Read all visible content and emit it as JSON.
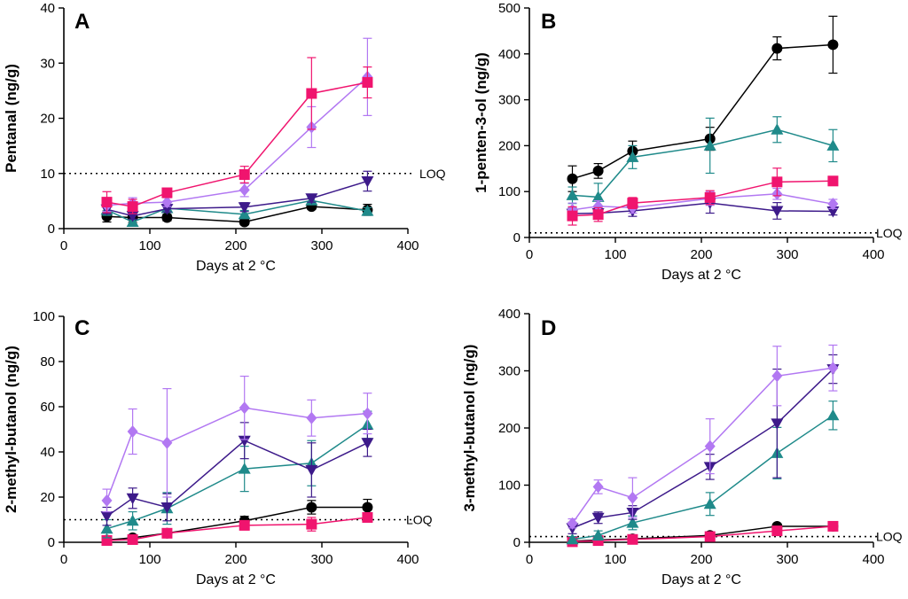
{
  "figure": {
    "colors": {
      "black": "#000000",
      "pink": "#f0146e",
      "violet": "#b278f2",
      "indigo": "#3d1a8a",
      "teal": "#1f8a8a"
    },
    "loq_text": "LOQ"
  },
  "chart_data": [
    {
      "id": "A",
      "letter": "A",
      "type": "line",
      "title": "",
      "xlabel": "Days at 2 °C",
      "ylabel": "Pentanal (ng/g)",
      "xlim": [
        0,
        400
      ],
      "ylim": [
        0,
        40
      ],
      "xticks": [
        0,
        100,
        200,
        300,
        400
      ],
      "yticks": [
        0,
        10,
        20,
        30,
        40
      ],
      "x_tick_labels": [
        "0",
        "100",
        "200",
        "300",
        "400"
      ],
      "y_tick_labels": [
        "0",
        "10",
        "20",
        "30",
        "40"
      ],
      "loq": 10,
      "x": [
        50,
        80,
        120,
        210,
        288,
        353
      ],
      "series": [
        {
          "name": "black-circle",
          "color": "#000000",
          "marker": "circle",
          "values": [
            2.2,
            2.0,
            2.0,
            1.2,
            4.0,
            3.4
          ],
          "errors": [
            1.0,
            0.9,
            0.6,
            0.5,
            0.5,
            1.0
          ]
        },
        {
          "name": "teal-triangle",
          "color": "#1f8a8a",
          "marker": "triangle-up",
          "values": [
            3.4,
            1.2,
            3.7,
            2.6,
            5.1,
            3.2
          ],
          "errors": [
            1.0,
            0.5,
            0.7,
            0.7,
            0.6,
            0.6
          ]
        },
        {
          "name": "indigo-triangle-down",
          "color": "#3d1a8a",
          "marker": "triangle-down",
          "values": [
            3.5,
            2.3,
            3.6,
            3.9,
            5.5,
            8.6
          ],
          "errors": [
            0.8,
            0.6,
            0.6,
            0.8,
            0.7,
            1.8
          ]
        },
        {
          "name": "violet-diamond",
          "color": "#b278f2",
          "marker": "diamond",
          "values": [
            4.2,
            4.6,
            4.8,
            7.0,
            18.4,
            27.5
          ],
          "errors": [
            1.1,
            1.0,
            0.8,
            1.2,
            3.7,
            7.0
          ]
        },
        {
          "name": "pink-square",
          "color": "#f0146e",
          "marker": "square",
          "values": [
            4.8,
            4.0,
            6.5,
            9.8,
            24.5,
            26.5
          ],
          "errors": [
            1.9,
            1.3,
            0.6,
            1.5,
            6.5,
            2.8
          ]
        }
      ]
    },
    {
      "id": "B",
      "letter": "B",
      "type": "line",
      "title": "",
      "xlabel": "Days at 2 °C",
      "ylabel": "1-penten-3-ol (ng/g)",
      "xlim": [
        0,
        400
      ],
      "ylim": [
        0,
        500
      ],
      "xticks": [
        0,
        100,
        200,
        300,
        400
      ],
      "yticks": [
        0,
        100,
        200,
        300,
        400,
        500
      ],
      "x_tick_labels": [
        "0",
        "100",
        "200",
        "300",
        "400"
      ],
      "y_tick_labels": [
        "0",
        "100",
        "200",
        "300",
        "400",
        "500"
      ],
      "loq": 10,
      "x": [
        50,
        80,
        120,
        210,
        288,
        353
      ],
      "series": [
        {
          "name": "black-circle",
          "color": "#000000",
          "marker": "circle",
          "values": [
            128,
            145,
            188,
            215,
            412,
            420
          ],
          "errors": [
            28,
            16,
            22,
            25,
            25,
            62
          ]
        },
        {
          "name": "teal-triangle",
          "color": "#1f8a8a",
          "marker": "triangle-up",
          "values": [
            92,
            88,
            175,
            200,
            235,
            200
          ],
          "errors": [
            18,
            30,
            25,
            60,
            28,
            35
          ]
        },
        {
          "name": "indigo-triangle-down",
          "color": "#3d1a8a",
          "marker": "triangle-down",
          "values": [
            52,
            53,
            58,
            75,
            58,
            57
          ],
          "errors": [
            12,
            10,
            12,
            22,
            18,
            8
          ]
        },
        {
          "name": "violet-diamond",
          "color": "#b278f2",
          "marker": "diamond",
          "values": [
            60,
            68,
            65,
            85,
            95,
            73
          ],
          "errors": [
            15,
            12,
            12,
            15,
            12,
            10
          ]
        },
        {
          "name": "pink-square",
          "color": "#f0146e",
          "marker": "square",
          "values": [
            47,
            50,
            75,
            87,
            121,
            123
          ],
          "errors": [
            20,
            15,
            12,
            15,
            30,
            5
          ]
        }
      ]
    },
    {
      "id": "C",
      "letter": "C",
      "type": "line",
      "title": "",
      "xlabel": "Days at 2 °C",
      "ylabel": "2-methyl-butanol (ng/g)",
      "xlim": [
        0,
        400
      ],
      "ylim": [
        0,
        100
      ],
      "xticks": [
        0,
        100,
        200,
        300,
        400
      ],
      "yticks": [
        0,
        20,
        40,
        60,
        80,
        100
      ],
      "x_tick_labels": [
        "0",
        "100",
        "200",
        "300",
        "400"
      ],
      "y_tick_labels": [
        "0",
        "20",
        "40",
        "60",
        "80",
        "100"
      ],
      "loq": 10,
      "x": [
        50,
        80,
        120,
        210,
        288,
        353
      ],
      "series": [
        {
          "name": "black-circle",
          "color": "#000000",
          "marker": "circle",
          "values": [
            1.0,
            2.0,
            4.0,
            9.5,
            15.5,
            15.5
          ],
          "errors": [
            1.0,
            1.0,
            1.0,
            2.0,
            3.0,
            3.5
          ]
        },
        {
          "name": "pink-square",
          "color": "#f0146e",
          "marker": "square",
          "values": [
            0.8,
            1.2,
            4.0,
            7.5,
            8.0,
            11.0
          ],
          "errors": [
            0.5,
            0.8,
            1.0,
            2.0,
            3.0,
            2.0
          ]
        },
        {
          "name": "teal-triangle",
          "color": "#1f8a8a",
          "marker": "triangle-up",
          "values": [
            6.0,
            9.5,
            15.0,
            32.5,
            35.0,
            52.0
          ],
          "errors": [
            4.0,
            4.0,
            7.0,
            10.0,
            10.0,
            6.0
          ]
        },
        {
          "name": "indigo-triangle-down",
          "color": "#3d1a8a",
          "marker": "triangle-down",
          "values": [
            11.5,
            19.5,
            15.5,
            45.0,
            32.0,
            44.0
          ],
          "errors": [
            4.0,
            4.5,
            6.0,
            8.0,
            12.0,
            6.0
          ]
        },
        {
          "name": "violet-diamond",
          "color": "#b278f2",
          "marker": "diamond",
          "values": [
            18.5,
            49.0,
            44.0,
            59.5,
            55.0,
            57.0
          ],
          "errors": [
            5.0,
            10.0,
            24.0,
            14.0,
            8.0,
            9.0
          ]
        }
      ]
    },
    {
      "id": "D",
      "letter": "D",
      "type": "line",
      "title": "",
      "xlabel": "Days at 2 °C",
      "ylabel": "3-methyl-butanol (ng/g)",
      "xlim": [
        0,
        400
      ],
      "ylim": [
        0,
        400
      ],
      "xticks": [
        0,
        100,
        200,
        300,
        400
      ],
      "yticks": [
        0,
        100,
        200,
        300,
        400
      ],
      "x_tick_labels": [
        "0",
        "100",
        "200",
        "300",
        "400"
      ],
      "y_tick_labels": [
        "0",
        "100",
        "200",
        "300",
        "400"
      ],
      "loq": 10,
      "x": [
        50,
        80,
        120,
        210,
        288,
        353
      ],
      "series": [
        {
          "name": "black-circle",
          "color": "#000000",
          "marker": "circle",
          "values": [
            2,
            4,
            6,
            12,
            28,
            28
          ],
          "errors": [
            2,
            2,
            3,
            3,
            4,
            4
          ]
        },
        {
          "name": "pink-square",
          "color": "#f0146e",
          "marker": "square",
          "values": [
            1,
            3,
            5,
            10,
            20,
            28
          ],
          "errors": [
            1,
            2,
            3,
            3,
            4,
            3
          ]
        },
        {
          "name": "teal-triangle",
          "color": "#1f8a8a",
          "marker": "triangle-up",
          "values": [
            5,
            12,
            34,
            67,
            156,
            222
          ],
          "errors": [
            5,
            8,
            12,
            20,
            45,
            25
          ]
        },
        {
          "name": "indigo-triangle-down",
          "color": "#3d1a8a",
          "marker": "triangle-down",
          "values": [
            25,
            43,
            52,
            132,
            208,
            303
          ],
          "errors": [
            10,
            10,
            12,
            22,
            95,
            25
          ]
        },
        {
          "name": "violet-diamond",
          "color": "#b278f2",
          "marker": "diamond",
          "values": [
            33,
            97,
            78,
            168,
            291,
            305
          ],
          "errors": [
            8,
            12,
            35,
            48,
            52,
            40
          ]
        }
      ]
    }
  ]
}
